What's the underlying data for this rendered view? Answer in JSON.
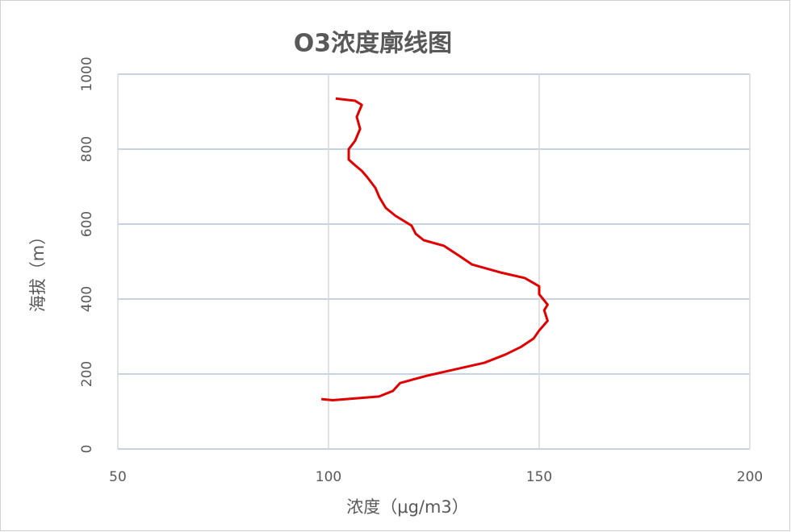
{
  "chart_data": {
    "type": "line",
    "title": "O3浓度廓线图",
    "x_label": "浓度（μg/m3）",
    "y_label": "海拔（m）",
    "x": [
      98.3,
      101,
      112,
      115.3,
      117,
      123.6,
      130.3,
      137,
      142,
      145.8,
      148.7,
      150,
      152,
      151.2,
      152,
      150,
      150,
      146.6,
      140.8,
      134.1,
      131.2,
      127.4,
      122.6,
      120.7,
      119.7,
      115.9,
      113.6,
      112.1,
      111.1,
      109.2,
      107.9,
      106.3,
      104.8,
      104.8,
      106.3,
      107.5,
      106.7,
      107.9,
      106.3,
      101.7
    ],
    "series": [
      {
        "name": "O3",
        "color": "#e00000",
        "values": [
          133,
          130,
          140,
          155,
          176,
          196,
          213,
          230,
          252,
          273,
          295,
          316,
          342,
          370,
          385,
          413,
          434,
          456,
          471,
          492,
          514,
          542,
          557,
          574,
          596,
          622,
          643,
          671,
          697,
          725,
          742,
          757,
          772,
          800,
          822,
          854,
          886,
          918,
          929,
          935
        ]
      }
    ],
    "xlim": [
      50,
      200
    ],
    "xticks": [
      50,
      100,
      150,
      200
    ],
    "ylim": [
      0,
      1000
    ],
    "yticks": [
      0,
      200,
      400,
      600,
      800,
      1000
    ],
    "grid": true
  }
}
